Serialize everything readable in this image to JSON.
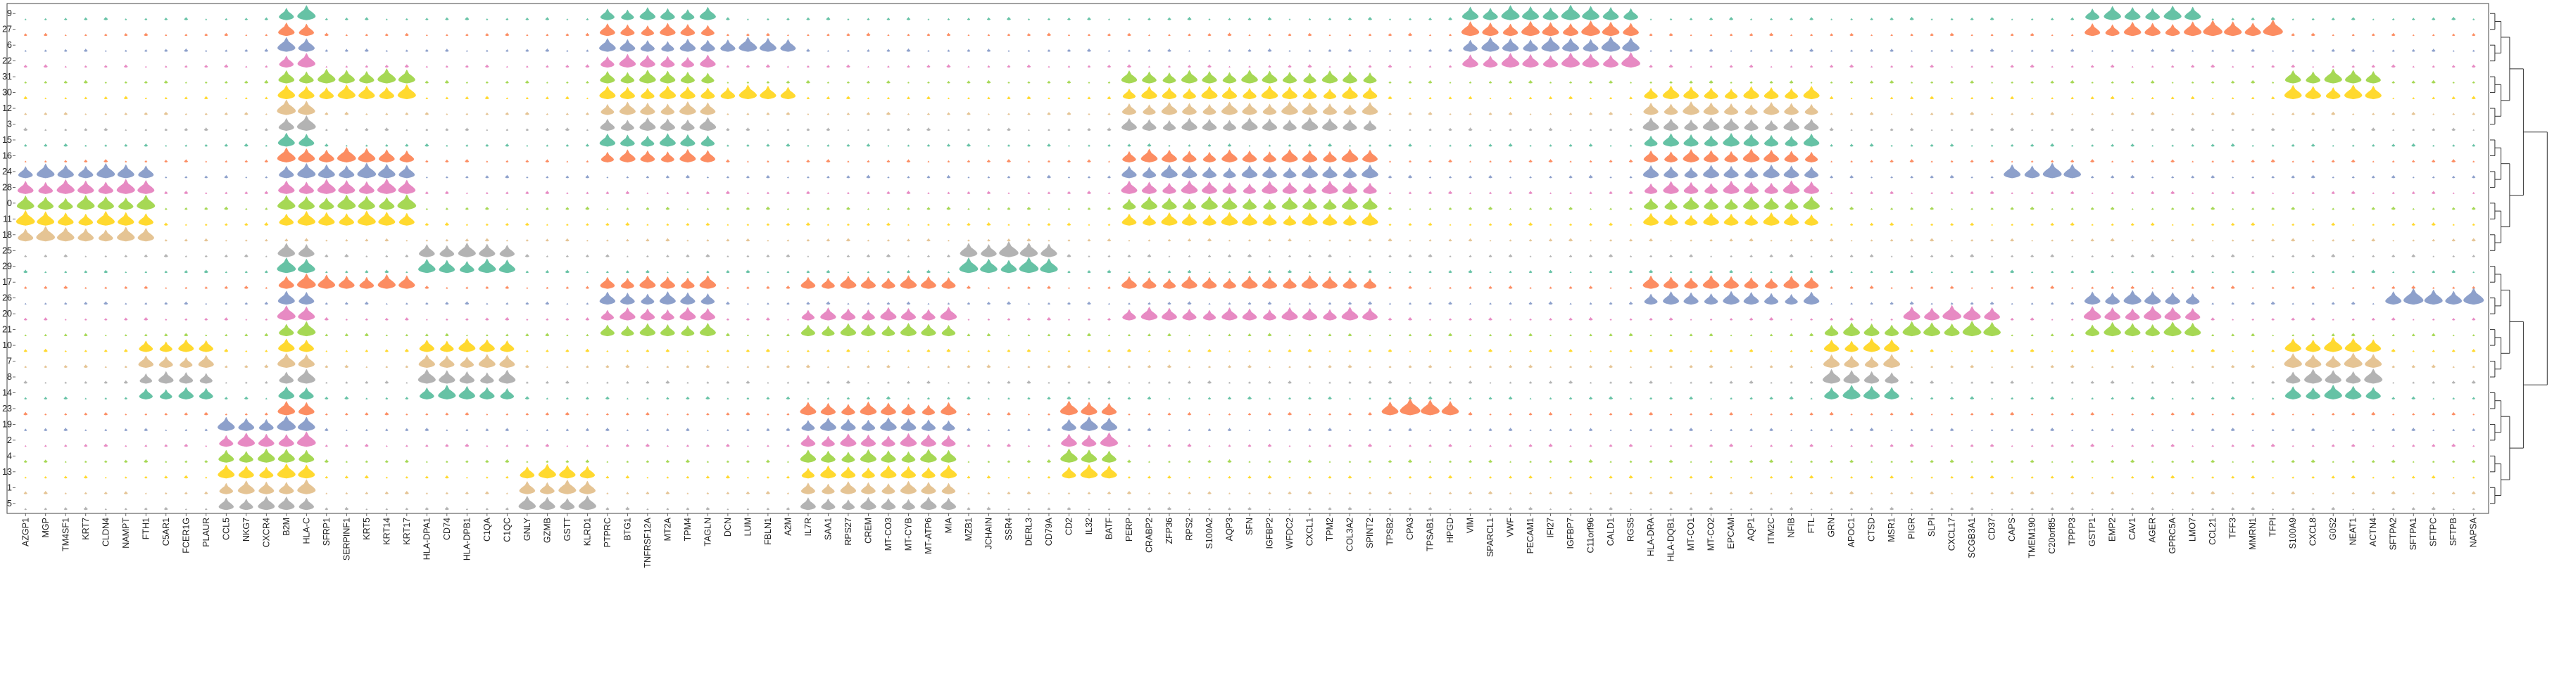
{
  "chart_data": {
    "type": "stacked-violin",
    "title": "",
    "xlabel": "",
    "ylabel": "",
    "grid": false,
    "legend": "none",
    "dendrogram": "right",
    "cluster_order": [
      "9",
      "27",
      "6",
      "22",
      "31",
      "30",
      "12",
      "3",
      "15",
      "16",
      "24",
      "28",
      "0",
      "11",
      "18",
      "25",
      "29",
      "17",
      "26",
      "20",
      "21",
      "10",
      "7",
      "8",
      "14",
      "23",
      "19",
      "2",
      "4",
      "13",
      "1",
      "5"
    ],
    "genes": [
      "AZGP1",
      "MGP",
      "TM4SF1",
      "KRT7",
      "CLDN4",
      "NAMPT",
      "FTH1",
      "C5AR1",
      "FCER1G",
      "PLAUR",
      "CCL5",
      "NKG7",
      "CXCR4",
      "B2M",
      "HLA-C",
      "SFRP1",
      "SERPINF1",
      "KRT5",
      "KRT14",
      "KRT17",
      "HLA-DPA1",
      "CD74",
      "HLA-DPB1",
      "C1QA",
      "C1QC",
      "GNLY",
      "GZMB",
      "GSTT",
      "KLRD1",
      "PTPRC",
      "BTG1",
      "TNFRSF12A",
      "MT2A",
      "TPM4",
      "TAGLN",
      "DCN",
      "LUM",
      "FBLN1",
      "A2M",
      "IL7R",
      "SAA1",
      "RPS27",
      "CREM",
      "MT-CO3",
      "MT-CYB",
      "MT-ATP6",
      "MIA",
      "MZB1",
      "JCHAIN",
      "SSR4",
      "DERL3",
      "CD79A",
      "CD2",
      "IL32",
      "BATF",
      "PERP",
      "CRABP2",
      "ZFP36",
      "RPS2",
      "S100A2",
      "AQP3",
      "SFN",
      "IGFBP2",
      "WFDC2",
      "CXCL1",
      "TPM2",
      "COL3A2",
      "SPINT2",
      "TPSB2",
      "CPA3",
      "TPSAB1",
      "HPGD",
      "VIM",
      "SPARCL1",
      "VWF",
      "PECAM1",
      "IFI27",
      "IGFBP7",
      "C11orf96",
      "CALD1",
      "RGS5",
      "HLA-DRA",
      "HLA-DQB1",
      "MT-CO1",
      "MT-CO2",
      "EPCAM",
      "AQP1",
      "ITM2C",
      "NFIB",
      "FTL",
      "GRN",
      "APOC1",
      "CTSD",
      "MSR1",
      "PIGR",
      "SLPI",
      "CXCL17",
      "SCGB3A1",
      "CD37",
      "CAPS",
      "TMEM190",
      "C20orf85",
      "TPPP3",
      "GSTP1",
      "EMP2",
      "CAV1",
      "AGER",
      "GPRC5A",
      "LMO7",
      "CCL21",
      "TFF3",
      "MMRN1",
      "TFPI",
      "S100A9",
      "CXCL8",
      "G0S2",
      "NEAT1",
      "ACTN4",
      "SFTPA2",
      "SFTPA1",
      "SFTPC",
      "SFTPB",
      "NAPSA"
    ],
    "palette": [
      "#66c2a5",
      "#fc8d62",
      "#8da0cb",
      "#e78ac3",
      "#a6d854",
      "#ffd92f",
      "#e5c494",
      "#b3b3b3"
    ],
    "highlighted_blocks": [
      {
        "genes": [
          "AZGP1",
          "MGP",
          "TM4SF1",
          "KRT7",
          "CLDN4",
          "NAMPT",
          "FTH1"
        ],
        "clusters": [
          "24",
          "28",
          "0",
          "11",
          "18"
        ],
        "level": 0.85
      },
      {
        "genes": [
          "FTH1",
          "C5AR1",
          "FCER1G",
          "PLAUR"
        ],
        "clusters": [
          "10",
          "7",
          "8",
          "14"
        ],
        "level": 0.7
      },
      {
        "genes": [
          "CCL5",
          "NKG7",
          "CXCR4"
        ],
        "clusters": [
          "4",
          "13",
          "1",
          "5",
          "19",
          "2"
        ],
        "level": 0.8
      },
      {
        "genes": [
          "B2M",
          "HLA-C"
        ],
        "clusters": [
          "9",
          "27",
          "6",
          "22",
          "31",
          "30",
          "12",
          "3",
          "15",
          "16",
          "24",
          "28",
          "0",
          "11",
          "25",
          "29",
          "17",
          "26",
          "20",
          "21",
          "10",
          "7",
          "8",
          "14",
          "23",
          "19",
          "2",
          "4",
          "13",
          "1",
          "5"
        ],
        "level": 0.85
      },
      {
        "genes": [
          "SFRP1",
          "SERPINF1",
          "KRT5",
          "KRT14",
          "KRT17"
        ],
        "clusters": [
          "31",
          "30",
          "16",
          "24",
          "28",
          "0",
          "11",
          "17"
        ],
        "level": 0.85
      },
      {
        "genes": [
          "HLA-DPA1",
          "CD74",
          "HLA-DPB1",
          "C1QA",
          "C1QC"
        ],
        "clusters": [
          "25",
          "29",
          "10",
          "7",
          "8",
          "14"
        ],
        "level": 0.8
      },
      {
        "genes": [
          "GNLY",
          "GZMB",
          "GSTT",
          "KLRD1"
        ],
        "clusters": [
          "13",
          "1",
          "5"
        ],
        "level": 0.8
      },
      {
        "genes": [
          "PTPRC",
          "BTG1",
          "TNFRSF12A",
          "MT2A",
          "TPM4",
          "TAGLN"
        ],
        "clusters": [
          "9",
          "27",
          "6",
          "22",
          "31",
          "30",
          "12",
          "3",
          "15",
          "16",
          "17",
          "26",
          "20",
          "21"
        ],
        "level": 0.75
      },
      {
        "genes": [
          "DCN",
          "LUM",
          "FBLN1",
          "A2M"
        ],
        "clusters": [
          "6",
          "30"
        ],
        "level": 0.85
      },
      {
        "genes": [
          "IL7R",
          "SAA1",
          "RPS27",
          "CREM",
          "MT-CO3",
          "MT-CYB",
          "MT-ATP6",
          "MIA"
        ],
        "clusters": [
          "23",
          "19",
          "2",
          "4",
          "13",
          "1",
          "5",
          "17",
          "20",
          "21"
        ],
        "level": 0.75
      },
      {
        "genes": [
          "MZB1",
          "JCHAIN",
          "SSR4",
          "DERL3",
          "CD79A"
        ],
        "clusters": [
          "29",
          "25"
        ],
        "level": 0.9
      },
      {
        "genes": [
          "CD2",
          "IL32",
          "BATF"
        ],
        "clusters": [
          "19",
          "2",
          "4",
          "13",
          "23"
        ],
        "level": 0.8
      },
      {
        "genes": [
          "PERP",
          "CRABP2",
          "ZFP36",
          "RPS2",
          "S100A2",
          "AQP3",
          "SFN",
          "IGFBP2",
          "WFDC2",
          "CXCL1",
          "TPM2",
          "COL3A2",
          "SPINT2"
        ],
        "clusters": [
          "31",
          "30",
          "12",
          "3",
          "16",
          "24",
          "28",
          "0",
          "11",
          "17",
          "20"
        ],
        "level": 0.75
      },
      {
        "genes": [
          "TPSB2",
          "CPA3",
          "TPSAB1",
          "HPGD"
        ],
        "clusters": [
          "23"
        ],
        "level": 0.95
      },
      {
        "genes": [
          "VIM",
          "SPARCL1",
          "VWF",
          "PECAM1",
          "IFI27",
          "IGFBP7",
          "C11orf96",
          "CALD1",
          "RGS5"
        ],
        "clusters": [
          "9",
          "27",
          "6",
          "22"
        ],
        "level": 0.85
      },
      {
        "genes": [
          "HLA-DRA",
          "HLA-DQB1",
          "MT-CO1",
          "MT-CO2",
          "EPCAM",
          "AQP1",
          "ITM2C",
          "NFIB",
          "FTL"
        ],
        "clusters": [
          "30",
          "12",
          "3",
          "15",
          "16",
          "24",
          "28",
          "0",
          "11",
          "17",
          "26"
        ],
        "level": 0.75
      },
      {
        "genes": [
          "GRN",
          "APOC1",
          "CTSD",
          "MSR1"
        ],
        "clusters": [
          "21",
          "10",
          "7",
          "8",
          "14"
        ],
        "level": 0.8
      },
      {
        "genes": [
          "PIGR",
          "SLPI",
          "CXCL17",
          "SCGB3A1",
          "CD37"
        ],
        "clusters": [
          "20",
          "21"
        ],
        "level": 0.85
      },
      {
        "genes": [
          "CAPS",
          "TMEM190",
          "C20orf85",
          "TPPP3"
        ],
        "clusters": [
          "24"
        ],
        "level": 0.9
      },
      {
        "genes": [
          "GSTP1",
          "EMP2",
          "CAV1",
          "AGER",
          "GPRC5A",
          "LMO7"
        ],
        "clusters": [
          "26",
          "20",
          "21",
          "9",
          "27"
        ],
        "level": 0.8
      },
      {
        "genes": [
          "CCL21",
          "TFF3",
          "MMRN1",
          "TFPI"
        ],
        "clusters": [
          "27"
        ],
        "level": 0.95
      },
      {
        "genes": [
          "S100A9",
          "CXCL8",
          "G0S2",
          "NEAT1",
          "ACTN4"
        ],
        "clusters": [
          "31",
          "30",
          "10",
          "7",
          "8",
          "14"
        ],
        "level": 0.85
      },
      {
        "genes": [
          "SFTPA2",
          "SFTPA1",
          "SFTPC",
          "SFTPB",
          "NAPSA"
        ],
        "clusters": [
          "26"
        ],
        "level": 0.95
      }
    ],
    "background_level": 0.18
  }
}
